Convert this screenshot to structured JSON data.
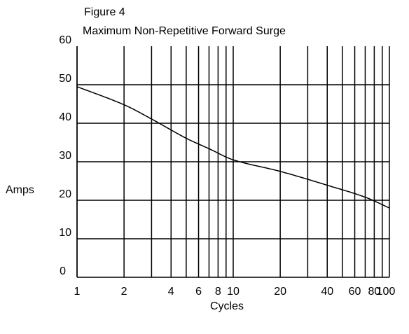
{
  "chart_data": {
    "type": "line",
    "title_line1": "Figure 4",
    "title_line2": "Maximum Non-Repetitive Forward Surge",
    "xlabel": "Cycles",
    "ylabel": "Amps",
    "x_scale": "log",
    "xlim": [
      1,
      100
    ],
    "ylim": [
      0,
      60
    ],
    "grid": true,
    "x_ticks": [
      1,
      2,
      4,
      6,
      8,
      10,
      20,
      40,
      60,
      80,
      100
    ],
    "x_tick_labels": [
      "1",
      "2",
      "4",
      "6",
      "8",
      "10",
      "20",
      "40",
      "60",
      "80",
      "100"
    ],
    "x_gridlines": [
      1,
      2,
      3,
      4,
      5,
      6,
      7,
      8,
      9,
      10,
      20,
      30,
      40,
      50,
      60,
      70,
      80,
      90,
      100
    ],
    "y_ticks": [
      0,
      10,
      20,
      30,
      40,
      50,
      60
    ],
    "y_tick_labels": [
      "0",
      "10",
      "20",
      "30",
      "40",
      "50",
      "60"
    ],
    "y_gridlines": [
      10,
      20,
      30,
      40,
      50
    ],
    "series": [
      {
        "x": [
          1,
          2,
          3,
          5,
          7,
          10,
          20,
          40,
          70,
          100
        ],
        "y": [
          49.5,
          44.8,
          41.1,
          36.1,
          33.4,
          30.5,
          27.5,
          23.9,
          20.8,
          18
        ]
      }
    ]
  }
}
